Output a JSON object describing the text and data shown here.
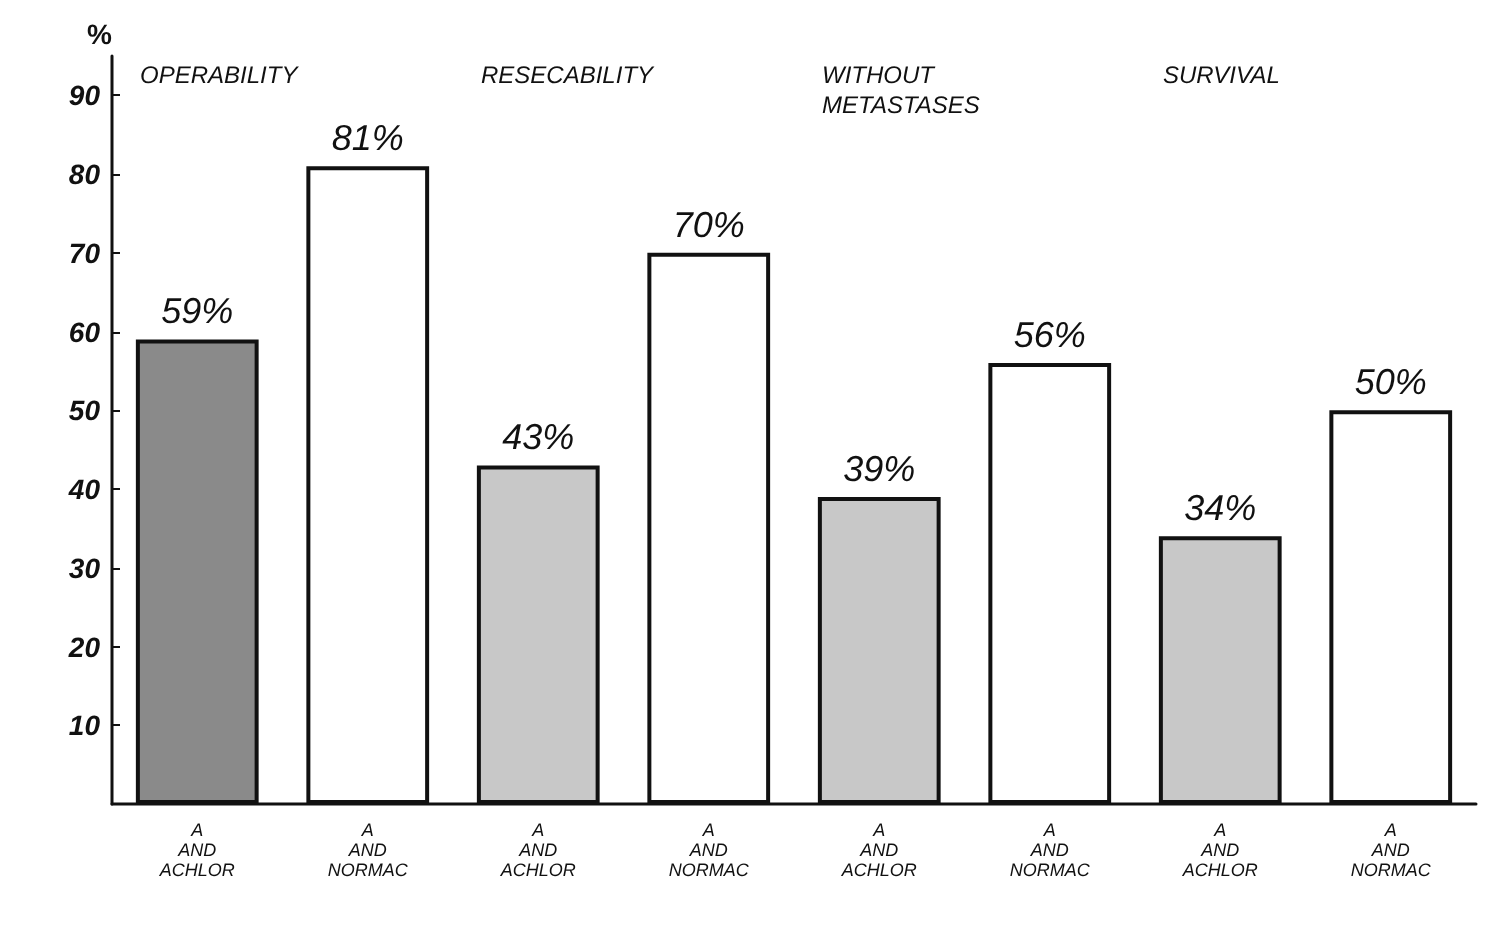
{
  "chart_data": {
    "type": "bar",
    "ylabel": "%",
    "categories": [
      "A\nAND\nACHLOR",
      "A\nAND\nNORMAC",
      "A\nAND\nACHLOR",
      "A\nAND\nNORMAC",
      "A\nAND\nACHLOR",
      "A\nAND\nNORMAC",
      "A\nAND\nACHLOR",
      "A\nAND\nNORMAC"
    ],
    "values": [
      59,
      81,
      43,
      70,
      39,
      56,
      34,
      50
    ],
    "colors": [
      "#8a8a8a",
      "#ffffff",
      "#c8c8c8",
      "#ffffff",
      "#c8c8c8",
      "#ffffff",
      "#c8c8c8",
      "#ffffff"
    ],
    "value_labels": [
      "59%",
      "81%",
      "43%",
      "70%",
      "39%",
      "56%",
      "34%",
      "50%"
    ],
    "annotations": [
      "OPERABILITY",
      "RESECABILITY",
      "WITHOUT\nMETASTASES",
      "SURVIVAL"
    ],
    "ylim": [
      0,
      95
    ],
    "yticks": [
      10,
      20,
      30,
      40,
      50,
      60,
      70,
      80,
      90
    ]
  }
}
